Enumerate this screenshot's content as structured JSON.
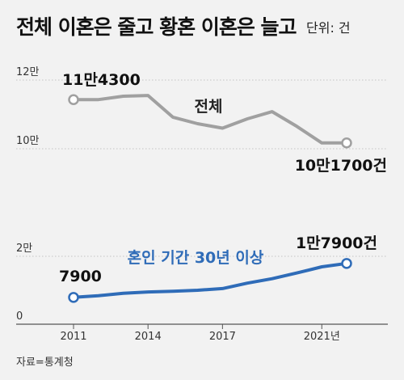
{
  "header": {
    "title": "전체 이혼은 줄고 황혼 이혼은 늘고",
    "unit": "단위: 건"
  },
  "source": "자료=통계청",
  "chart_data": {
    "type": "line",
    "title": "전체 이혼은 줄고 황혼 이혼은 늘고",
    "unit": "단위: 건",
    "x": [
      2011,
      2012,
      2013,
      2014,
      2015,
      2016,
      2017,
      2018,
      2019,
      2020,
      2021,
      2022
    ],
    "x_tick_labels": [
      "2011",
      "2014",
      "2017",
      "2021년"
    ],
    "upper_panel": {
      "y_tick_labels": [
        "12만",
        "10만"
      ],
      "ylim": [
        100000,
        120000
      ]
    },
    "lower_panel": {
      "y_tick_labels": [
        "2만",
        "0"
      ],
      "ylim": [
        0,
        20000
      ]
    },
    "series": [
      {
        "name": "전체",
        "panel": "upper",
        "color": "#a0a0a0",
        "values": [
          114300,
          114300,
          115300,
          115500,
          109200,
          107300,
          106000,
          108700,
          110800,
          106500,
          101700,
          101700
        ],
        "start_label": "11만4300",
        "end_label": "10만1700건"
      },
      {
        "name": "혼인 기간 30년 이상",
        "panel": "lower",
        "color": "#2f6cb8",
        "values": [
          7900,
          8400,
          9100,
          9500,
          9700,
          10000,
          10500,
          12100,
          13400,
          15100,
          16900,
          17900
        ],
        "start_label": "7900",
        "end_label": "1만7900건"
      }
    ],
    "grid": true,
    "legend": "inline labels"
  }
}
